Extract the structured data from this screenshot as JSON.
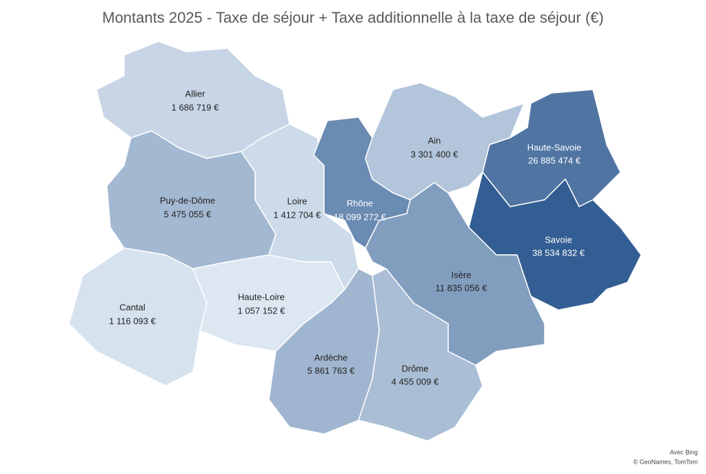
{
  "chart_data": {
    "type": "choropleth",
    "title": "Montants 2025 - Taxe de séjour + Taxe additionnelle à la taxe de séjour (€)",
    "categories": [
      "Allier",
      "Puy-de-Dôme",
      "Cantal",
      "Haute-Loire",
      "Loire",
      "Rhône",
      "Ain",
      "Haute-Savoie",
      "Savoie",
      "Isère",
      "Drôme",
      "Ardèche"
    ],
    "values": [
      1686719,
      5475055,
      1116093,
      1057152,
      1412704,
      18099272,
      3301400,
      26885474,
      38534832,
      11835056,
      4455009,
      5861763
    ],
    "value_labels": [
      "1 686 719 €",
      "5 475 055 €",
      "1 116 093 €",
      "1 057 152 €",
      "1 412 704 €",
      "18 099 272 €",
      "3 301 400 €",
      "26 885 474 €",
      "38 534 832 €",
      "11 835 056 €",
      "4 455 009 €",
      "5 861 763 €"
    ],
    "color_scale": [
      "#dde7f2",
      "#335e93"
    ],
    "attribution": [
      "Avec Bing",
      "© GeoNames, TomTom"
    ]
  }
}
